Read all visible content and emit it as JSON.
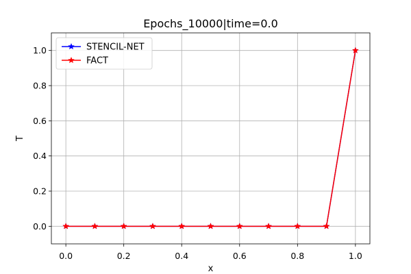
{
  "chart_data": {
    "type": "line",
    "title": "Epochs_10000|time=0.0",
    "xlabel": "x",
    "ylabel": "T",
    "xlim": [
      -0.05,
      1.05
    ],
    "ylim": [
      -0.1,
      1.1
    ],
    "grid": true,
    "legend_position": "top-left",
    "x_ticks": [
      "0.0",
      "0.2",
      "0.4",
      "0.6",
      "0.8",
      "1.0"
    ],
    "y_ticks": [
      "0.0",
      "0.2",
      "0.4",
      "0.6",
      "0.8",
      "1.0"
    ],
    "x": [
      0.0,
      0.1,
      0.2,
      0.3,
      0.4,
      0.5,
      0.6,
      0.7,
      0.8,
      0.9,
      1.0
    ],
    "series": [
      {
        "name": "STENCIL-NET",
        "color": "#0000ff",
        "marker": "star",
        "values": [
          0,
          0,
          0,
          0,
          0,
          0,
          0,
          0,
          0,
          0,
          1.0
        ]
      },
      {
        "name": "FACT",
        "color": "#ff0000",
        "marker": "star",
        "values": [
          0,
          0,
          0,
          0,
          0,
          0,
          0,
          0,
          0,
          0,
          1.0
        ]
      }
    ]
  }
}
